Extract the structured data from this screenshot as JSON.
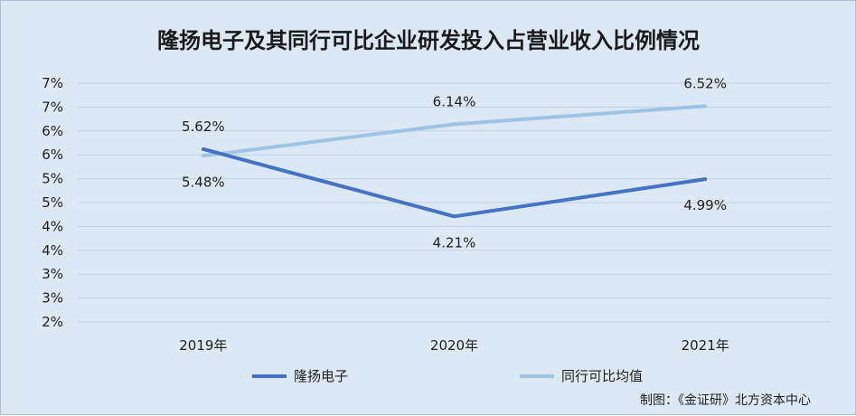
{
  "chart_data": {
    "type": "line",
    "title": "隆扬电子及其同行可比企业研发投入占营业收入比例情况",
    "categories": [
      "2019年",
      "2020年",
      "2021年"
    ],
    "y_tick_labels": [
      "7%",
      "7%",
      "6%",
      "6%",
      "5%",
      "5%",
      "4%",
      "4%",
      "3%",
      "3%",
      "2%"
    ],
    "ylim": [
      2,
      7
    ],
    "grid": true,
    "legend_position": "bottom",
    "series": [
      {
        "name": "隆扬电子",
        "values": [
          5.62,
          4.21,
          4.99
        ],
        "labels": [
          "5.62%",
          "4.21%",
          "4.99%"
        ],
        "color": "#4472c4"
      },
      {
        "name": "同行可比均值",
        "values": [
          5.48,
          6.14,
          6.52
        ],
        "labels": [
          "5.48%",
          "6.14%",
          "6.52%"
        ],
        "color": "#9dc3e6"
      }
    ],
    "source_note": "制图：《金证研》北方资本中心"
  }
}
